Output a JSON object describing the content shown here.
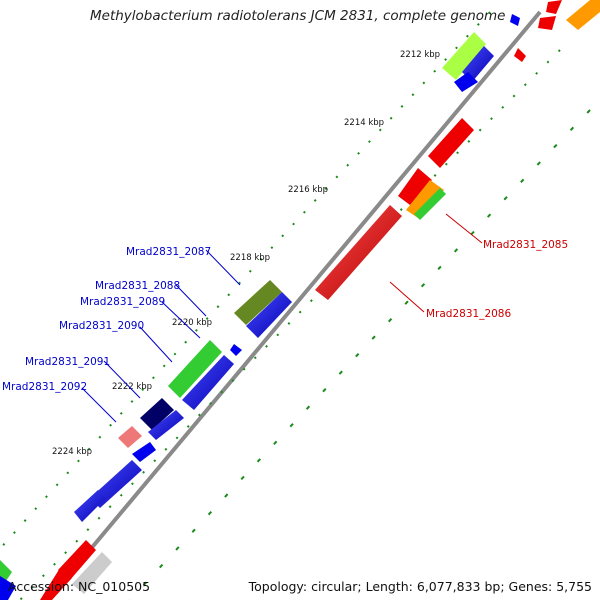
{
  "title": "Methylobacterium radiotolerans JCM 2831, complete genome",
  "accession": "Accession: NC_010505",
  "summary": "Topology: circular; Length: 6,077,833 bp; Genes: 5,755",
  "ticks": [
    "2212 kbp",
    "2214 kbp",
    "2216 kbp",
    "2218 kbp",
    "2220 kbp",
    "2222 kbp",
    "2224 kbp"
  ],
  "gene_labels": [
    {
      "name": "Mrad2831_2085",
      "color": "#cc0000"
    },
    {
      "name": "Mrad2831_2086",
      "color": "#cc0000"
    },
    {
      "name": "Mrad2831_2087",
      "color": "#0000cc"
    },
    {
      "name": "Mrad2831_2088",
      "color": "#0000cc"
    },
    {
      "name": "Mrad2831_2089",
      "color": "#0000cc"
    },
    {
      "name": "Mrad2831_2090",
      "color": "#0000cc"
    },
    {
      "name": "Mrad2831_2091",
      "color": "#0000cc"
    },
    {
      "name": "Mrad2831_2092",
      "color": "#0000cc"
    }
  ],
  "colors": {
    "forward": "#0000ee",
    "reverse": "#ee0000",
    "backbone": "#888888",
    "tick": "#1a8a1a"
  }
}
